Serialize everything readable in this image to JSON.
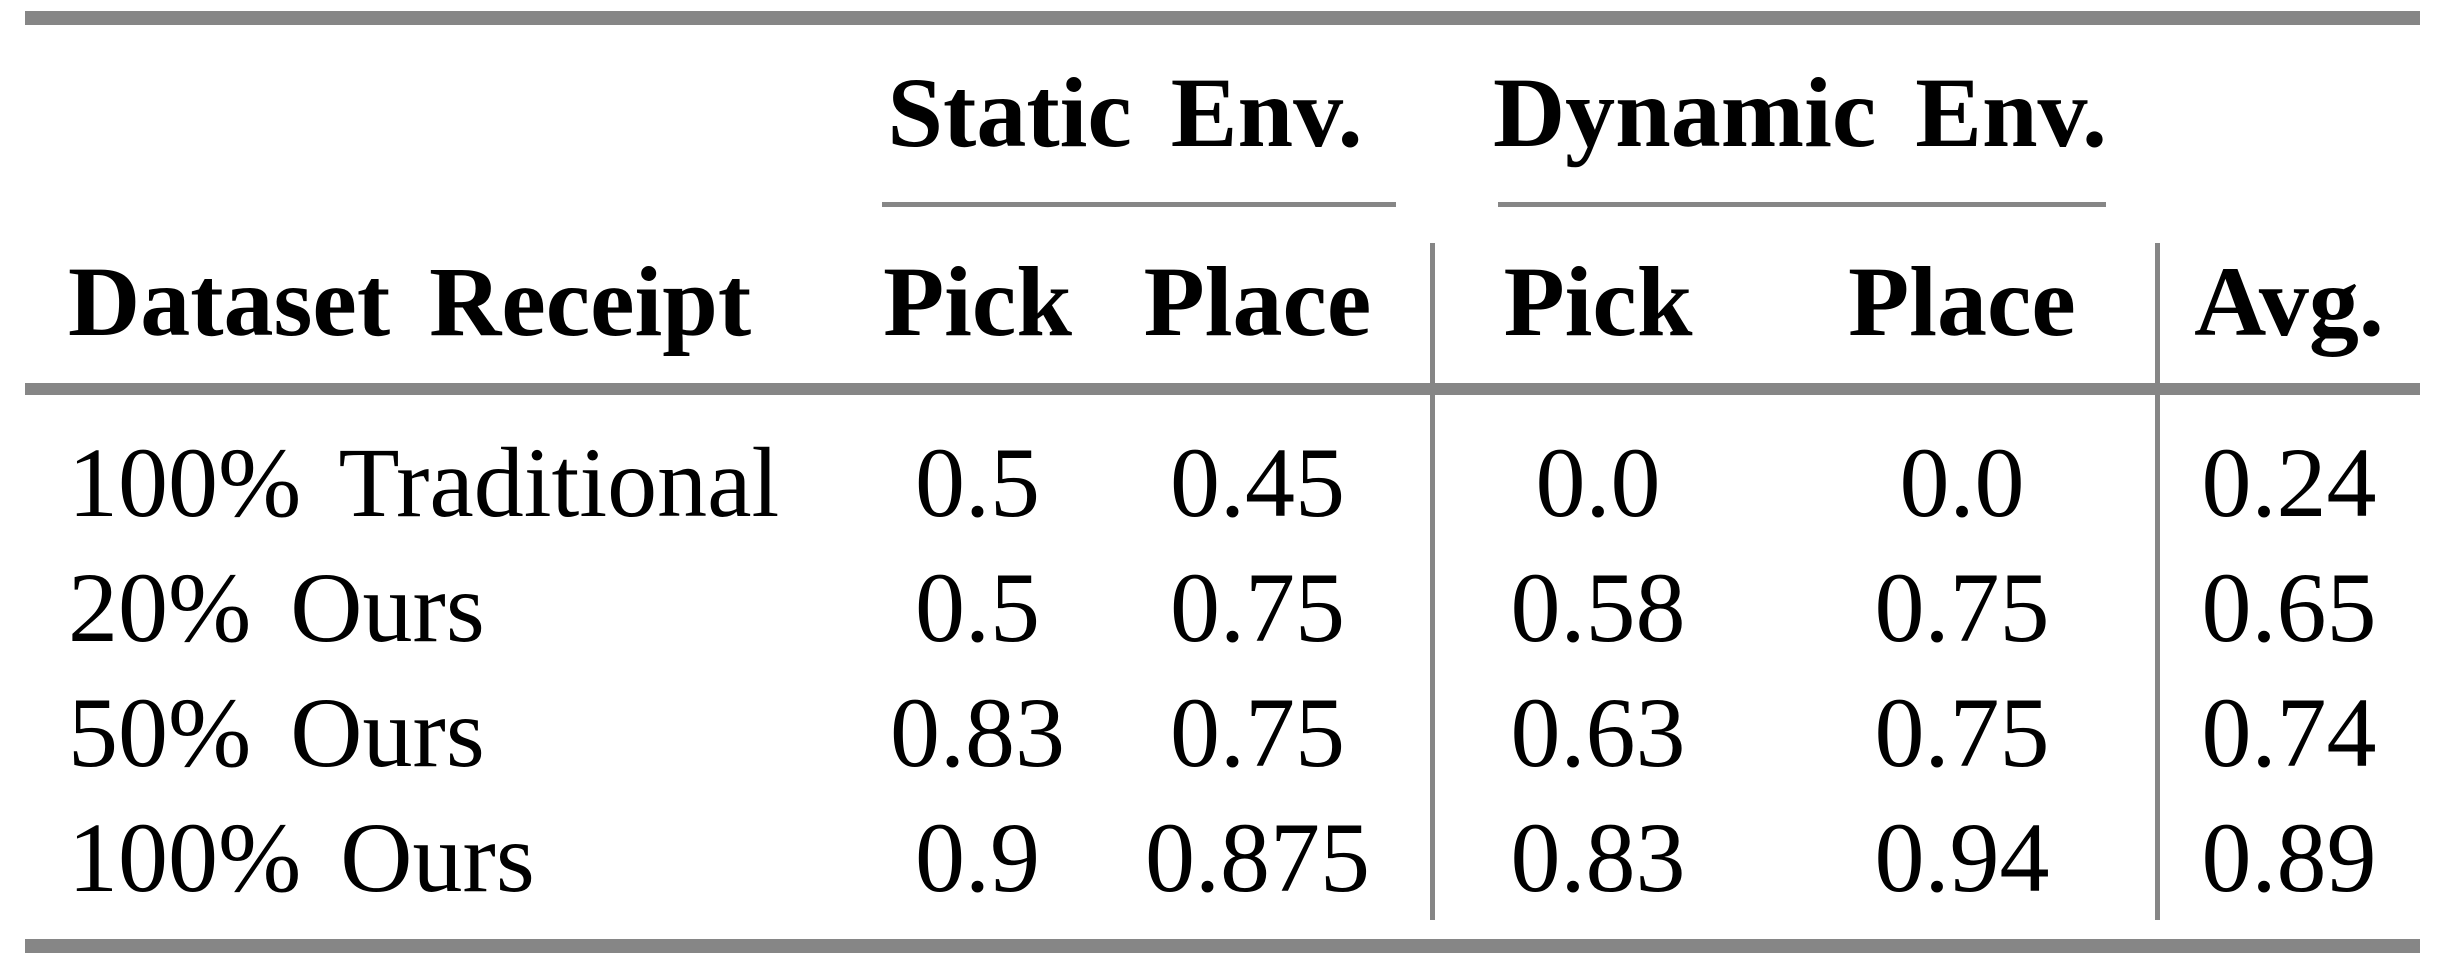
{
  "colors": {
    "rule_gray": "#868686",
    "text": "#000000",
    "background": "#ffffff"
  },
  "table": {
    "groups": [
      {
        "label": "Static Env."
      },
      {
        "label": "Dynamic Env."
      }
    ],
    "columns": [
      "Dataset Receipt",
      "Pick",
      "Place",
      "Pick",
      "Place",
      "Avg."
    ],
    "rows": [
      {
        "label": "100% Traditional",
        "cells": [
          "0.5",
          "0.45",
          "0.0",
          "0.0",
          "0.24"
        ]
      },
      {
        "label": "20% Ours",
        "cells": [
          "0.5",
          "0.75",
          "0.58",
          "0.75",
          "0.65"
        ]
      },
      {
        "label": "50% Ours",
        "cells": [
          "0.83",
          "0.75",
          "0.63",
          "0.75",
          "0.74"
        ]
      },
      {
        "label": "100% Ours",
        "cells": [
          "0.9",
          "0.875",
          "0.83",
          "0.94",
          "0.89"
        ]
      }
    ]
  },
  "chart_data": {
    "type": "table",
    "column_groups": [
      {
        "label": "Static Env.",
        "columns": [
          "Pick",
          "Place"
        ]
      },
      {
        "label": "Dynamic Env.",
        "columns": [
          "Pick",
          "Place"
        ]
      }
    ],
    "columns": [
      "Dataset Receipt",
      "Static Pick",
      "Static Place",
      "Dynamic Pick",
      "Dynamic Place",
      "Avg."
    ],
    "rows": [
      [
        "100% Traditional",
        0.5,
        0.45,
        0.0,
        0.0,
        0.24
      ],
      [
        "20% Ours",
        0.5,
        0.75,
        0.58,
        0.75,
        0.65
      ],
      [
        "50% Ours",
        0.83,
        0.75,
        0.63,
        0.75,
        0.74
      ],
      [
        "100% Ours",
        0.9,
        0.875,
        0.83,
        0.94,
        0.89
      ]
    ]
  }
}
